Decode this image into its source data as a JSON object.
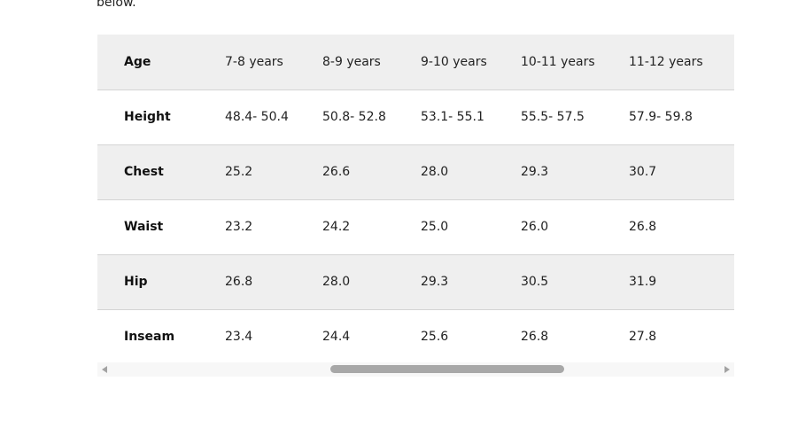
{
  "intro": {
    "text": "below."
  },
  "size_table": {
    "header": {
      "label": "Age",
      "columns": [
        "7-8 years",
        "8-9 years",
        "9-10 years",
        "10-11 years",
        "11-12 years"
      ]
    },
    "rows": [
      {
        "label": "Height",
        "values": [
          "48.4- 50.4",
          "50.8- 52.8",
          "53.1- 55.1",
          "55.5- 57.5",
          "57.9- 59.8"
        ]
      },
      {
        "label": "Chest",
        "values": [
          "25.2",
          "26.6",
          "28.0",
          "29.3",
          "30.7"
        ]
      },
      {
        "label": "Waist",
        "values": [
          "23.2",
          "24.2",
          "25.0",
          "26.0",
          "26.8"
        ]
      },
      {
        "label": "Hip",
        "values": [
          "26.8",
          "28.0",
          "29.3",
          "30.5",
          "31.9"
        ]
      },
      {
        "label": "Inseam",
        "values": [
          "23.4",
          "24.4",
          "25.6",
          "26.8",
          "27.8"
        ]
      }
    ]
  },
  "scrollbar": {
    "left_icon": "triangle-left-icon",
    "right_icon": "triangle-right-icon"
  },
  "colors": {
    "shaded_row": "#efefef",
    "row_border": "#d4d4d4",
    "scroll_thumb": "#a8a8a8"
  }
}
